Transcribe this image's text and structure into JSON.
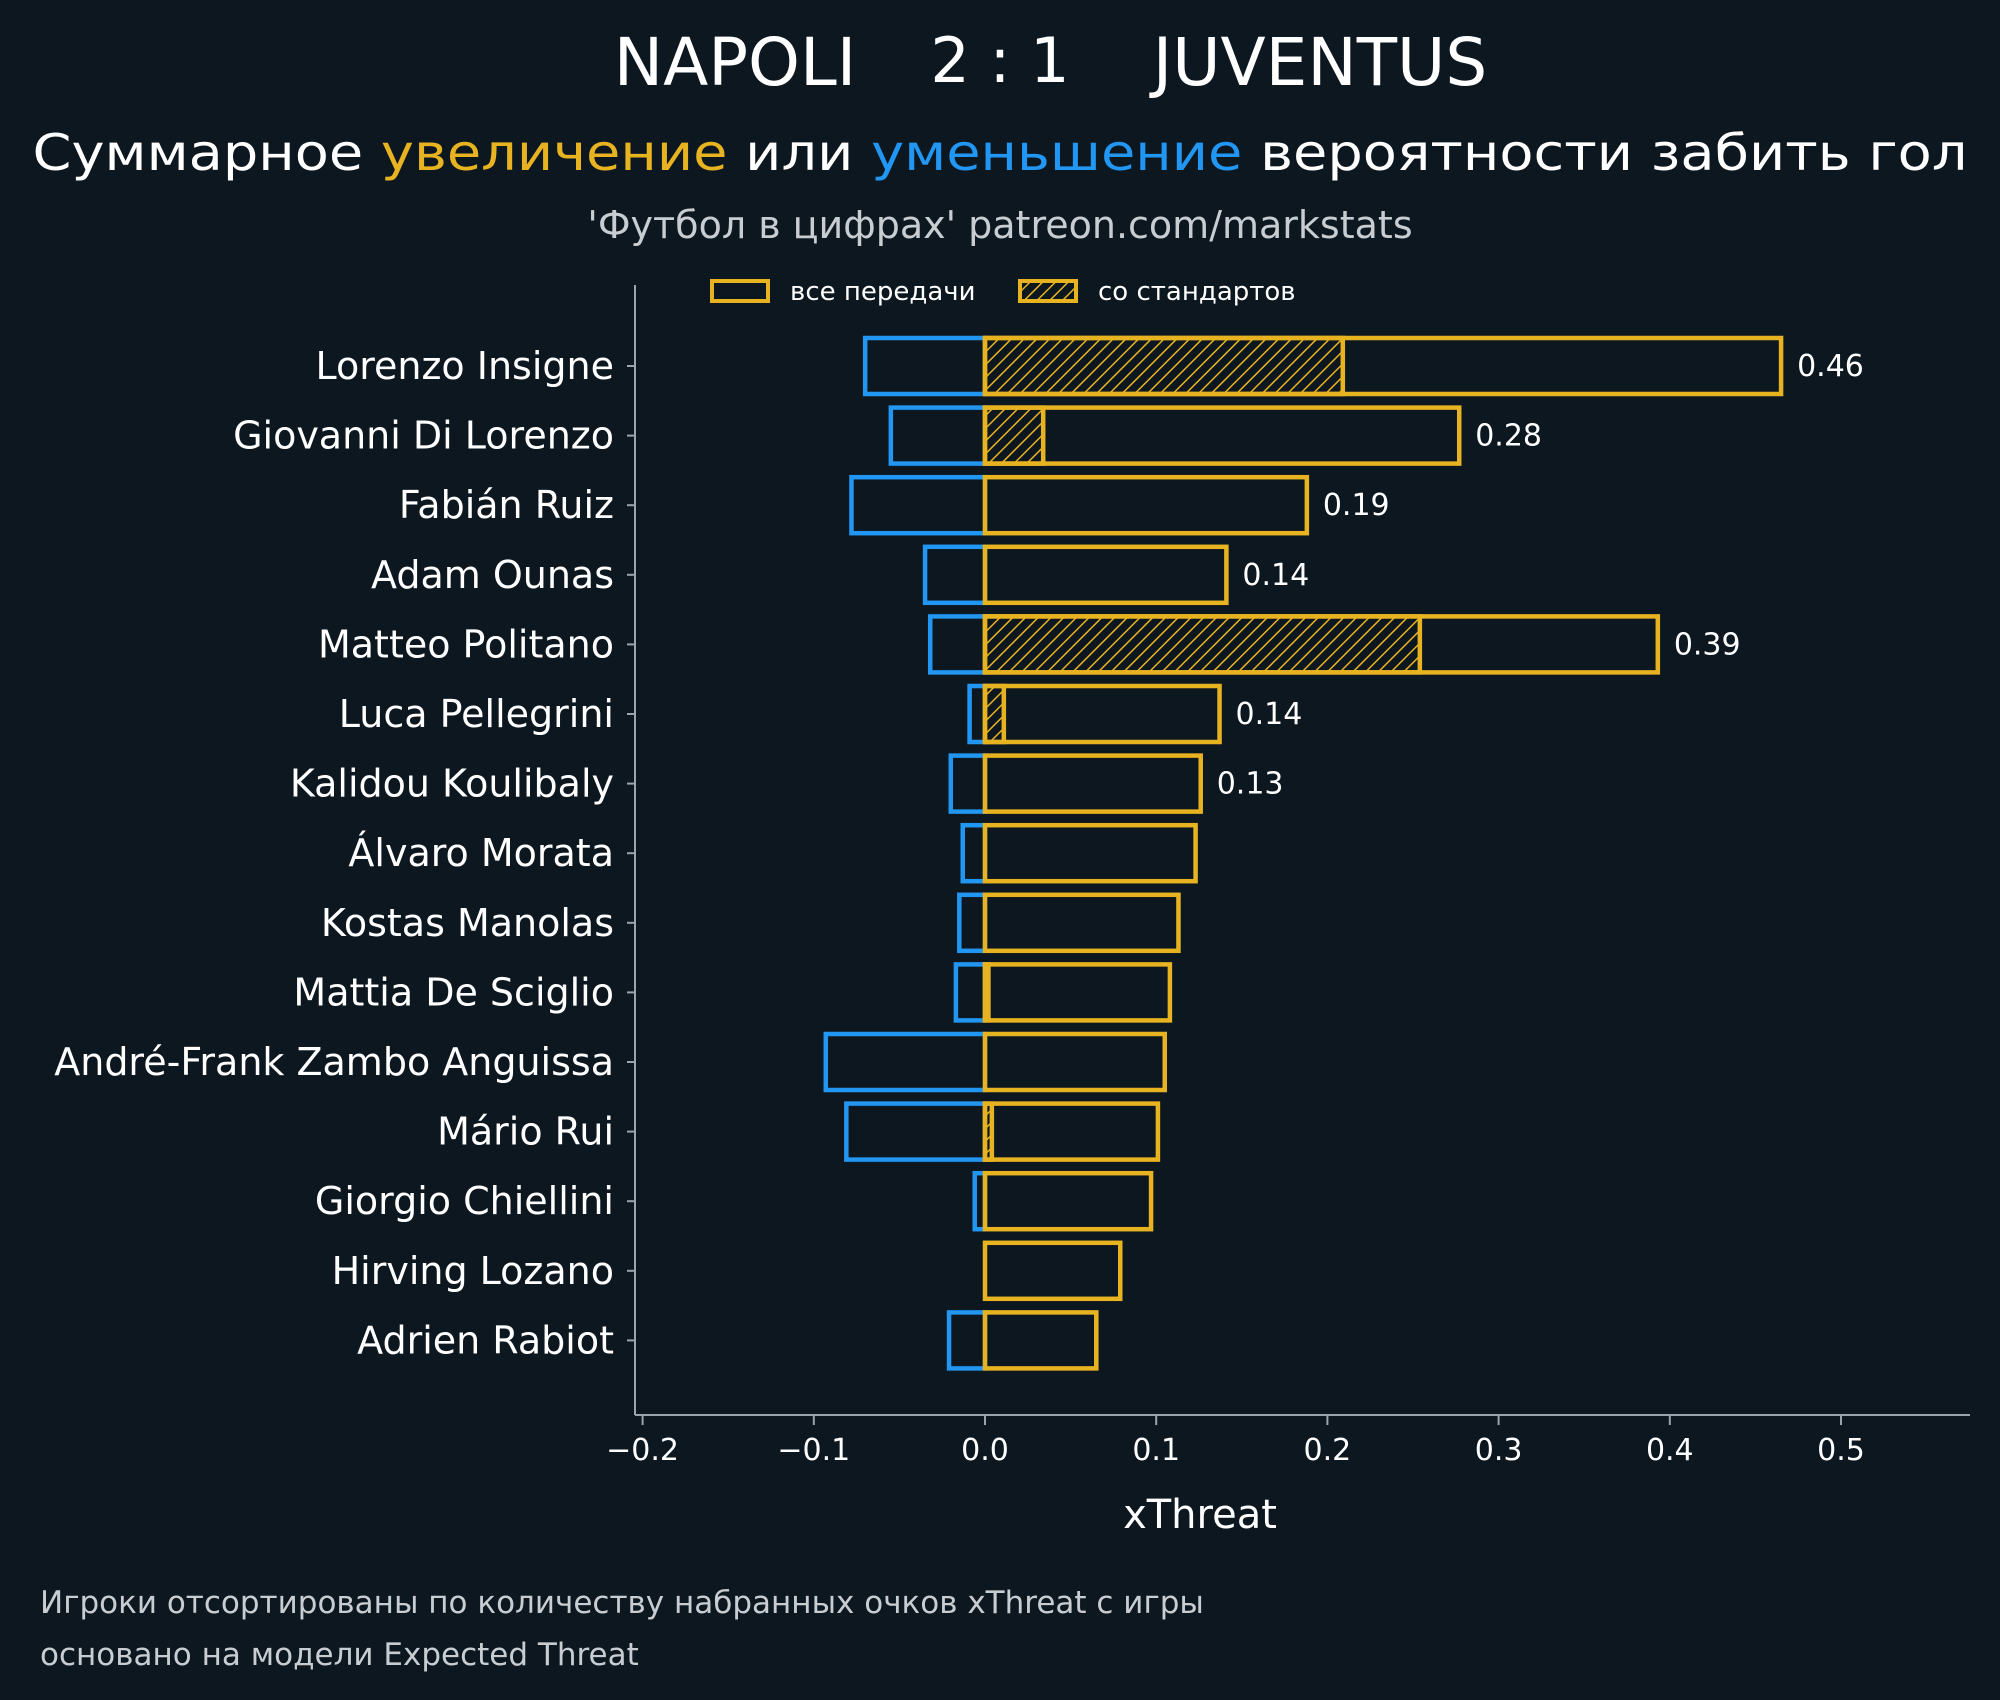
{
  "header": {
    "home_team": "NAPOLI",
    "score": "2 : 1",
    "away_team": "JUVENTUS",
    "subtitle_part1": "Суммарное ",
    "subtitle_up": "увеличение",
    "subtitle_part2": " или ",
    "subtitle_down": "уменьшение",
    "subtitle_part3": " вероятности забить гол",
    "source": "'Футбол в цифрах' patreon.com/markstats"
  },
  "footer": {
    "line1": "Игроки отсортированы по количеству набранных очков xThreat с игры",
    "line2": "основано на модели Expected Threat"
  },
  "colors": {
    "background": "#0d1720",
    "positive": "#e8b321",
    "negative": "#2196f3",
    "axis": "#9aa5ae",
    "text": "#ffffff",
    "muted": "#c8cdd2"
  },
  "chart_data": {
    "type": "bar",
    "orientation": "horizontal",
    "xlabel": "xThreat",
    "xlim": [
      -0.2,
      0.57
    ],
    "xticks": [
      -0.2,
      -0.1,
      0.0,
      0.1,
      0.2,
      0.3,
      0.4,
      0.5
    ],
    "xtick_labels": [
      "−0.2",
      "−0.1",
      "0.0",
      "0.1",
      "0.2",
      "0.3",
      "0.4",
      "0.5"
    ],
    "legend": {
      "placement": "top-left",
      "entries": [
        {
          "label": "все передачи",
          "hatched": false
        },
        {
          "label": "со стандартов",
          "hatched": true
        }
      ]
    },
    "categories": [
      "Lorenzo Insigne",
      "Giovanni Di Lorenzo",
      "Fabián Ruiz",
      "Adam Ounas",
      "Matteo Politano",
      "Luca Pellegrini",
      "Kalidou Koulibaly",
      "Álvaro Morata",
      "Kostas Manolas",
      "Mattia De Sciglio",
      "André-Frank Zambo Anguissa",
      "Mário Rui",
      "Giorgio Chiellini",
      "Hirving Lozano",
      "Adrien Rabiot"
    ],
    "series": [
      {
        "key": "positive",
        "values": [
          0.465,
          0.277,
          0.188,
          0.141,
          0.393,
          0.137,
          0.126,
          0.123,
          0.113,
          0.108,
          0.105,
          0.101,
          0.097,
          0.079,
          0.065
        ]
      },
      {
        "key": "negative",
        "values": [
          -0.07,
          -0.055,
          -0.078,
          -0.035,
          -0.032,
          -0.009,
          -0.02,
          -0.013,
          -0.015,
          -0.017,
          -0.093,
          -0.081,
          -0.006,
          0.0,
          -0.021
        ]
      },
      {
        "key": "set_pieces",
        "values": [
          0.209,
          0.034,
          0.0,
          0.0,
          0.254,
          0.011,
          0.0,
          0.0,
          0.0,
          0.002,
          0.0,
          0.004,
          0.0,
          0.0,
          0.0
        ]
      }
    ],
    "value_labels": [
      "0.46",
      "0.28",
      "0.19",
      "0.14",
      "0.39",
      "0.14",
      "0.13",
      "",
      "",
      "",
      "",
      "",
      "",
      "",
      ""
    ]
  }
}
